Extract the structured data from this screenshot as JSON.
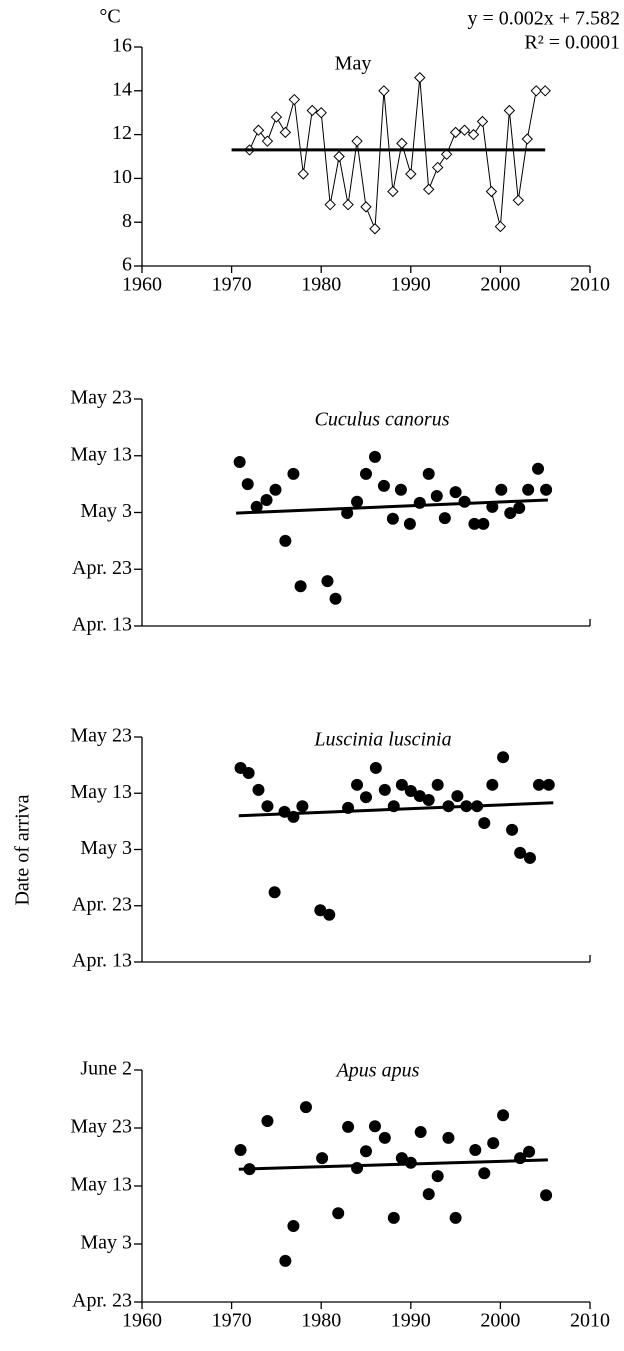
{
  "chart_data": [
    {
      "type": "line",
      "title": "May",
      "ylabel": "°C",
      "annotations": [
        "y = 0.002x + 7.582",
        "R² = 0.0001"
      ],
      "xlim": [
        1960,
        2010
      ],
      "xticks": [
        1960,
        1970,
        1980,
        1990,
        2000,
        2010
      ],
      "ylim": [
        6,
        16
      ],
      "yticks": [
        6,
        8,
        10,
        12,
        14,
        16
      ],
      "series": [
        {
          "kind": "markers-line",
          "marker": "diamond",
          "color": "#000000",
          "x": [
            1972,
            1973,
            1974,
            1975,
            1976,
            1977,
            1978,
            1979,
            1980,
            1981,
            1982,
            1983,
            1984,
            1985,
            1986,
            1987,
            1988,
            1989,
            1990,
            1991,
            1992,
            1993,
            1994,
            1995,
            1996,
            1997,
            1998,
            1999,
            2000,
            2001,
            2002,
            2003,
            2004,
            2005
          ],
          "values": [
            11.3,
            12.2,
            11.7,
            12.8,
            12.1,
            13.6,
            10.2,
            13.1,
            13.0,
            8.8,
            11.0,
            8.8,
            11.7,
            8.7,
            7.7,
            14.0,
            9.4,
            11.6,
            10.2,
            14.6,
            9.5,
            10.5,
            11.1,
            12.1,
            12.2,
            12.0,
            12.6,
            9.4,
            7.8,
            13.1,
            9.0,
            11.8,
            14.0,
            14.0
          ]
        },
        {
          "kind": "trend",
          "color": "#000000",
          "x": [
            1970,
            2005
          ],
          "values": [
            11.3,
            11.3
          ]
        }
      ]
    },
    {
      "type": "scatter",
      "title": "Cuculus canorus",
      "xlim": [
        1960,
        2010
      ],
      "ylim": [
        0,
        40
      ],
      "yticks": [
        {
          "value": 0,
          "label": "Apr. 13"
        },
        {
          "value": 10,
          "label": "Apr. 23"
        },
        {
          "value": 20,
          "label": "May 3"
        },
        {
          "value": 30,
          "label": "May 13"
        },
        {
          "value": 40,
          "label": "May 23"
        }
      ],
      "series": [
        {
          "kind": "points",
          "color": "#000000",
          "x": [
            1970.9,
            1971.8,
            1972.8,
            1973.9,
            1974.9,
            1976.0,
            1976.9,
            1977.7,
            1980.7,
            1981.6,
            1982.9,
            1984.0,
            1985.0,
            1986.0,
            1987.0,
            1988.0,
            1988.9,
            1989.9,
            1991.0,
            1992.0,
            1992.9,
            1993.8,
            1995.0,
            1996.0,
            1997.1,
            1998.1,
            1999.1,
            2000.1,
            2001.1,
            2002.1,
            2003.1,
            2004.2,
            2005.1
          ],
          "values": [
            28.9,
            25.0,
            21.0,
            22.2,
            24.0,
            15.0,
            26.8,
            7.0,
            7.9,
            4.8,
            19.9,
            21.9,
            26.8,
            29.8,
            24.7,
            18.9,
            24.0,
            18.0,
            21.7,
            26.8,
            22.9,
            19.0,
            23.6,
            21.9,
            18.0,
            18.0,
            21.0,
            24.0,
            19.9,
            20.8,
            24.0,
            27.7,
            24.0
          ]
        },
        {
          "kind": "trend",
          "color": "#000000",
          "x": [
            1970.5,
            2005.3
          ],
          "values": [
            19.9,
            22.2
          ]
        }
      ]
    },
    {
      "type": "scatter",
      "title": "Luscinia luscinia",
      "ylabel": "Date of arriva",
      "xlim": [
        1960,
        2010
      ],
      "ylim": [
        0,
        40
      ],
      "yticks": [
        {
          "value": 0,
          "label": "Apr. 13"
        },
        {
          "value": 10,
          "label": "Apr. 23"
        },
        {
          "value": 20,
          "label": "May 3"
        },
        {
          "value": 30,
          "label": "May 13"
        },
        {
          "value": 40,
          "label": "May 23"
        }
      ],
      "series": [
        {
          "kind": "points",
          "color": "#000000",
          "x": [
            1971.0,
            1971.9,
            1973.0,
            1974.0,
            1974.8,
            1975.9,
            1976.9,
            1977.9,
            1979.9,
            1980.9,
            1983.0,
            1984.0,
            1985.0,
            1986.1,
            1987.1,
            1988.1,
            1989.0,
            1990.0,
            1991.0,
            1992.0,
            1993.0,
            1994.2,
            1995.2,
            1996.2,
            1997.4,
            1998.2,
            1999.1,
            2000.3,
            2001.3,
            2002.2,
            2003.3,
            2004.3,
            2005.4
          ],
          "values": [
            34.5,
            33.6,
            30.6,
            27.7,
            12.4,
            26.7,
            25.8,
            27.7,
            9.2,
            8.4,
            27.4,
            31.5,
            29.3,
            34.5,
            30.6,
            27.7,
            31.5,
            30.4,
            29.5,
            28.8,
            31.5,
            27.7,
            29.5,
            27.7,
            27.7,
            24.7,
            31.5,
            36.4,
            23.5,
            19.4,
            18.5,
            31.5,
            31.5
          ]
        },
        {
          "kind": "trend",
          "color": "#000000",
          "x": [
            1970.8,
            2005.9
          ],
          "values": [
            26.0,
            28.3
          ]
        }
      ]
    },
    {
      "type": "scatter",
      "title": "Apus apus",
      "xlim": [
        1960,
        2010
      ],
      "xticks": [
        1960,
        1970,
        1980,
        1990,
        2000,
        2010
      ],
      "ylim": [
        10,
        50
      ],
      "yticks": [
        {
          "value": 10,
          "label": "Apr. 23"
        },
        {
          "value": 20,
          "label": "May 3"
        },
        {
          "value": 30,
          "label": "May 13"
        },
        {
          "value": 40,
          "label": "May 23"
        },
        {
          "value": 50,
          "label": "June 2"
        }
      ],
      "series": [
        {
          "kind": "points",
          "color": "#000000",
          "x": [
            1971.0,
            1972.0,
            1974.0,
            1976.0,
            1976.9,
            1978.3,
            1980.1,
            1981.9,
            1983.0,
            1984.0,
            1985.0,
            1986.0,
            1987.1,
            1988.1,
            1989.0,
            1990.0,
            1991.1,
            1992.0,
            1993.0,
            1994.2,
            1995.0,
            1997.2,
            1998.2,
            1999.2,
            2000.3,
            2002.2,
            2003.2,
            2005.1
          ],
          "values": [
            36.2,
            32.9,
            41.2,
            17.1,
            23.1,
            43.6,
            34.8,
            25.3,
            40.2,
            33.1,
            36.0,
            40.3,
            38.3,
            24.5,
            34.8,
            34.0,
            39.3,
            28.6,
            31.7,
            38.3,
            24.5,
            36.2,
            32.2,
            37.4,
            42.2,
            34.8,
            35.9,
            28.4
          ]
        },
        {
          "kind": "trend",
          "color": "#000000",
          "x": [
            1970.8,
            2005.3
          ],
          "values": [
            32.9,
            34.5
          ]
        }
      ]
    }
  ]
}
